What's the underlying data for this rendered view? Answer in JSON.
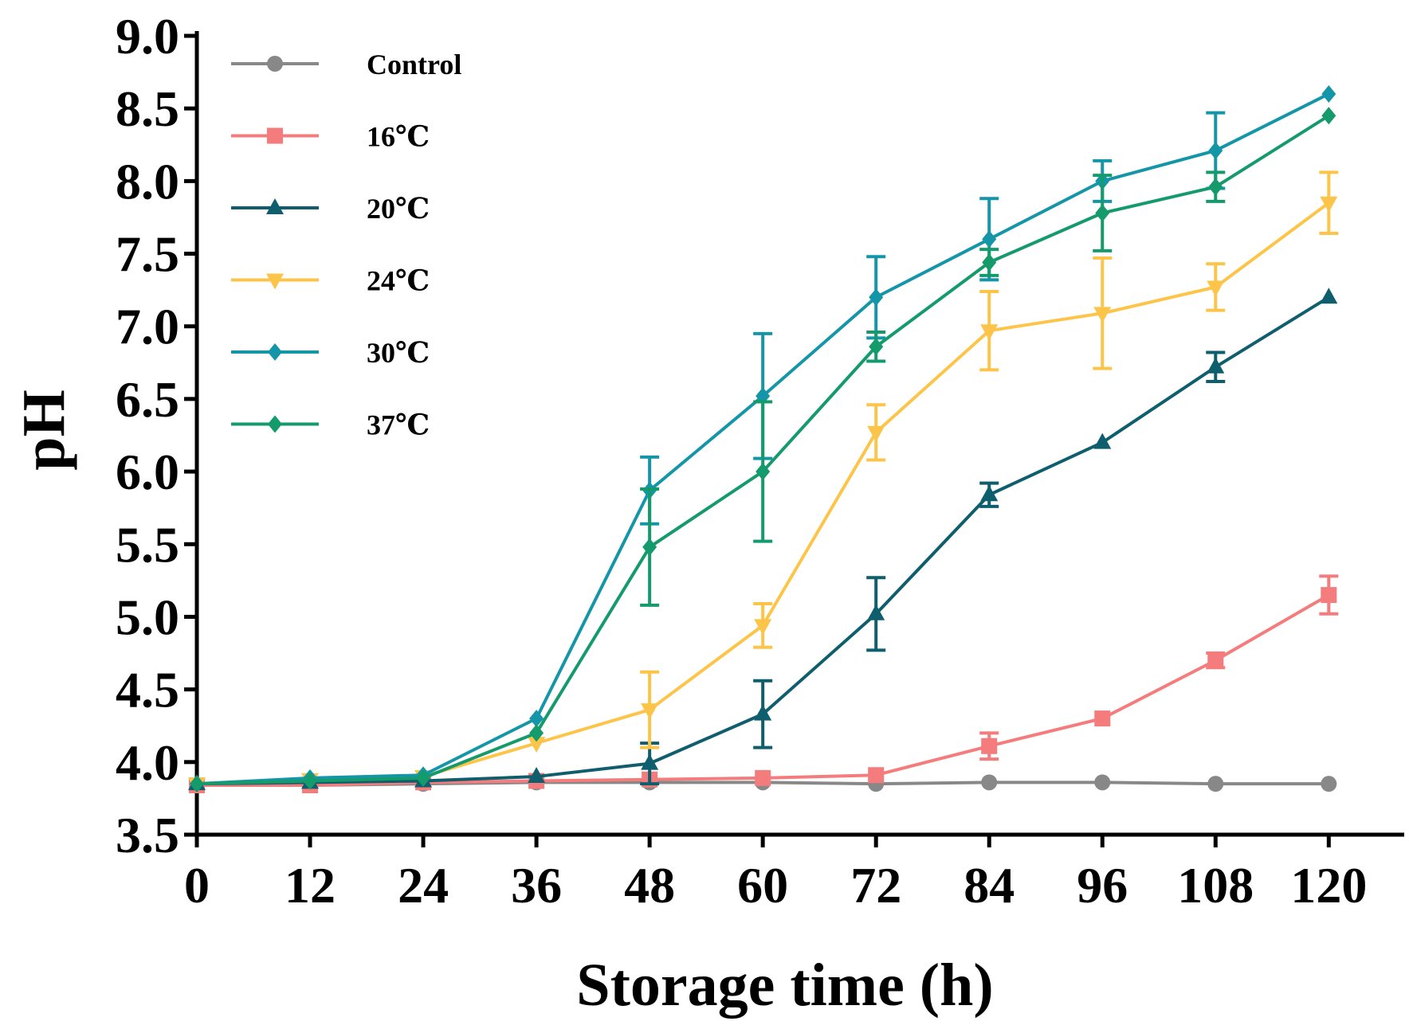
{
  "chart_data": {
    "type": "line",
    "xlabel": "Storage time (h)",
    "ylabel": "pH",
    "x": [
      0,
      12,
      24,
      36,
      48,
      60,
      72,
      84,
      96,
      108,
      120
    ],
    "xlim": [
      0,
      128
    ],
    "ylim": [
      3.5,
      9.0
    ],
    "x_ticks": [
      "0",
      "12",
      "24",
      "36",
      "48",
      "60",
      "72",
      "84",
      "96",
      "108",
      "120"
    ],
    "y_ticks": [
      "3.5",
      "4.0",
      "4.5",
      "5.0",
      "5.5",
      "6.0",
      "6.5",
      "7.0",
      "7.5",
      "8.0",
      "8.5",
      "9.0"
    ],
    "legend_position": "top-left",
    "grid": false,
    "series": [
      {
        "name": "Control",
        "color": "#888888",
        "marker": "circle",
        "values": [
          3.84,
          3.84,
          3.85,
          3.86,
          3.86,
          3.86,
          3.85,
          3.86,
          3.86,
          3.85,
          3.85
        ],
        "errors": [
          0,
          0,
          0,
          0,
          0,
          0,
          0,
          0,
          0,
          0,
          0
        ]
      },
      {
        "name": "16℃",
        "color": "#f47c7c",
        "marker": "square",
        "values": [
          3.84,
          3.84,
          3.86,
          3.87,
          3.88,
          3.89,
          3.91,
          4.11,
          4.3,
          4.7,
          5.15
        ],
        "errors": [
          0,
          0,
          0,
          0,
          0,
          0,
          0,
          0.09,
          0,
          0.05,
          0.13
        ]
      },
      {
        "name": "20℃",
        "color": "#0f5e6e",
        "marker": "triangle-up",
        "values": [
          3.85,
          3.86,
          3.87,
          3.9,
          3.99,
          4.33,
          5.02,
          5.84,
          6.2,
          6.72,
          7.2
        ],
        "errors": [
          0,
          0,
          0,
          0,
          0.14,
          0.23,
          0.25,
          0.08,
          0,
          0.1,
          0
        ]
      },
      {
        "name": "24℃",
        "color": "#fcc54a",
        "marker": "triangle-down",
        "values": [
          3.85,
          3.88,
          3.9,
          4.13,
          4.36,
          4.94,
          6.27,
          6.97,
          7.09,
          7.27,
          7.85
        ],
        "errors": [
          0,
          0,
          0,
          0,
          0.26,
          0.15,
          0.19,
          0.27,
          0.38,
          0.16,
          0.21
        ]
      },
      {
        "name": "30℃",
        "color": "#1596a8",
        "marker": "diamond",
        "values": [
          3.85,
          3.89,
          3.91,
          4.3,
          5.87,
          6.52,
          7.2,
          7.6,
          8.0,
          8.21,
          8.6
        ],
        "errors": [
          0,
          0,
          0,
          0,
          0.23,
          0.43,
          0.28,
          0.28,
          0.14,
          0.26,
          0
        ]
      },
      {
        "name": "37℃",
        "color": "#159a6c",
        "marker": "diamond",
        "values": [
          3.85,
          3.87,
          3.89,
          4.2,
          5.48,
          6.0,
          6.86,
          7.44,
          7.78,
          7.96,
          8.45
        ],
        "errors": [
          0,
          0,
          0,
          0,
          0.4,
          0.48,
          0.1,
          0.09,
          0.26,
          0.1,
          0
        ]
      }
    ]
  }
}
